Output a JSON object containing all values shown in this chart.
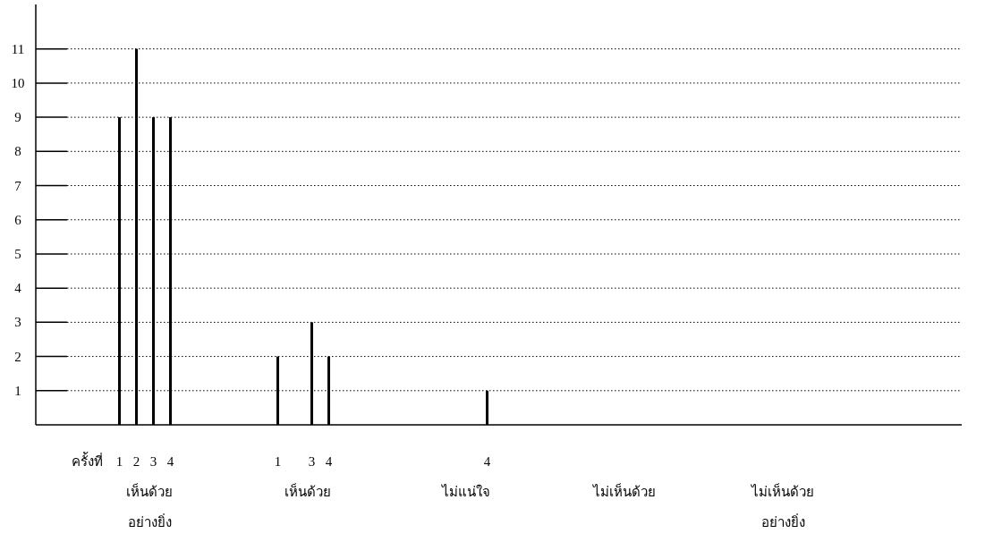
{
  "chart_data": {
    "type": "bar",
    "categories": [
      "เห็นด้วย\nอย่างยิ่ง",
      "เห็นด้วย",
      "ไม่แน่ใจ",
      "ไม่เห็นด้วย",
      "ไม่เห็นด้วย\nอย่างยิ่ง"
    ],
    "legend_title": "ครั้งที่",
    "series": [
      {
        "name": "1",
        "color": "#000000",
        "values": [
          9,
          2,
          null,
          null,
          null
        ]
      },
      {
        "name": "2",
        "color": "#000000",
        "values": [
          11,
          null,
          null,
          null,
          null
        ]
      },
      {
        "name": "3",
        "color": "#000000",
        "values": [
          9,
          3,
          null,
          null,
          null
        ]
      },
      {
        "name": "4",
        "color": "#000000",
        "values": [
          9,
          2,
          1,
          null,
          null
        ]
      }
    ],
    "ylim": [
      0,
      12.3
    ],
    "yticks": [
      1,
      2,
      3,
      4,
      5,
      6,
      7,
      8,
      9,
      10,
      11
    ],
    "grid": "y"
  }
}
